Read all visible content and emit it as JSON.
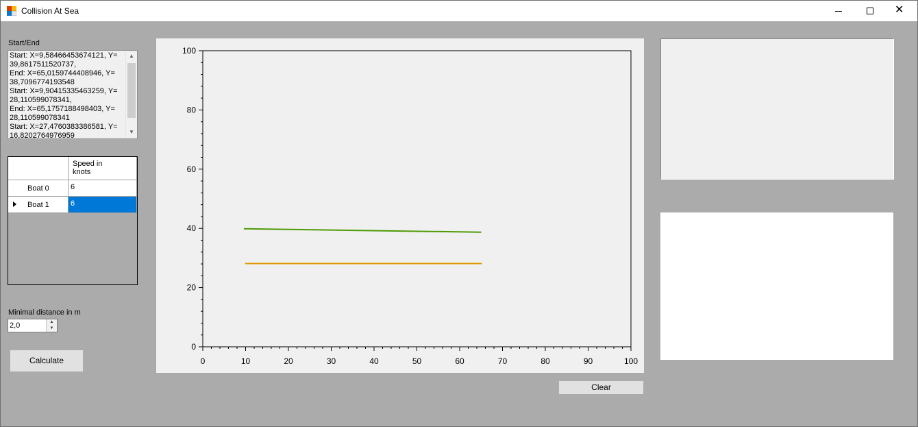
{
  "window": {
    "title": "Collision At Sea",
    "close_glyph": "✕"
  },
  "start_end": {
    "label": "Start/End",
    "text": "Start: X=9,58466453674121, Y=\n39,8617511520737,\nEnd: X=65,0159744408946, Y=\n38,7096774193548\nStart: X=9,90415335463259, Y=\n28,110599078341,\nEnd: X=65,1757188498403, Y=\n28,110599078341\nStart: X=27,4760383386581, Y=\n16,8202764976959"
  },
  "grid": {
    "column_header": "Speed in\nknots",
    "rows": [
      {
        "name": "Boat 0",
        "speed": "6"
      },
      {
        "name": "Boat 1",
        "speed": "6"
      }
    ],
    "selected_color": "#0078d7"
  },
  "min_distance": {
    "label": "Minimal distance in m",
    "value": "2,0"
  },
  "buttons": {
    "calculate": "Calculate",
    "clear": "Clear"
  },
  "chart_data": {
    "type": "line",
    "xlim": [
      0,
      100
    ],
    "ylim": [
      0,
      100
    ],
    "x_ticks": [
      0,
      10,
      20,
      30,
      40,
      50,
      60,
      70,
      80,
      90,
      100
    ],
    "y_ticks": [
      0,
      20,
      40,
      60,
      80,
      100
    ],
    "x_tick_labels": [
      "0",
      "10",
      "20",
      "30",
      "40",
      "50",
      "60",
      "70",
      "80",
      "90",
      "100"
    ],
    "y_tick_labels": [
      "0",
      "20",
      "40",
      "60",
      "80",
      "100"
    ],
    "minor_x_step": 2,
    "minor_y_step": 4,
    "grid": false,
    "series": [
      {
        "color": "#4e9a06",
        "x": [
          9.58466453674121,
          65.0159744408946
        ],
        "y": [
          39.8617511520737,
          38.7096774193548
        ]
      },
      {
        "color": "#e09a00",
        "x": [
          9.90415335463259,
          65.1757188498403
        ],
        "y": [
          28.110599078341,
          28.110599078341
        ]
      }
    ]
  }
}
